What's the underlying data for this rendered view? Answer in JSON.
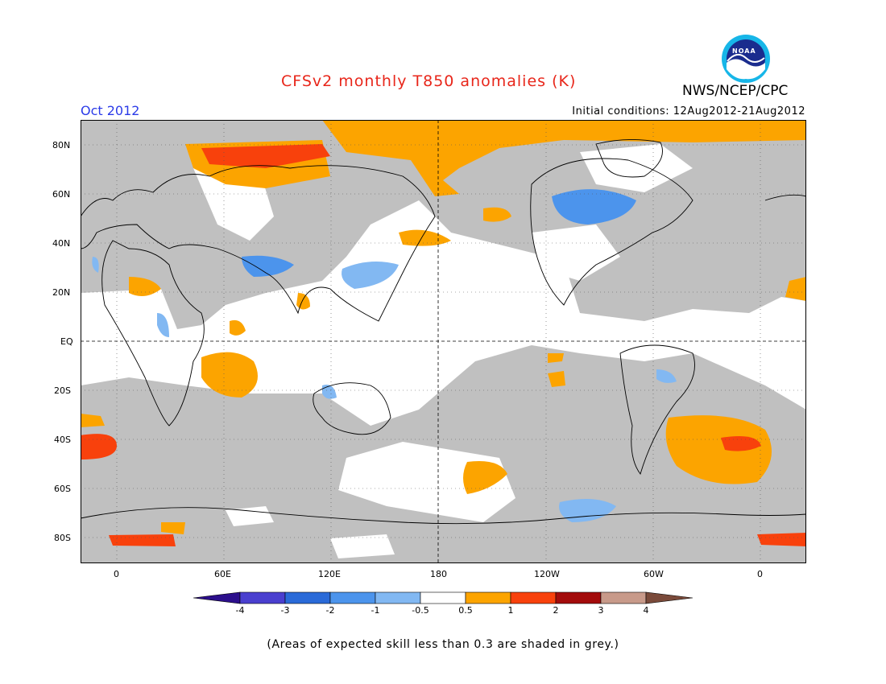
{
  "header": {
    "title": "CFSv2 monthly T850 anomalies (K)",
    "month": "Oct 2012",
    "initial_conditions": "Initial conditions: 12Aug2012-21Aug2012",
    "agency": "NWS/NCEP/CPC",
    "logo_text": "NOAA"
  },
  "map": {
    "lat_labels": [
      "80N",
      "60N",
      "40N",
      "20N",
      "EQ",
      "20S",
      "40S",
      "60S",
      "80S"
    ],
    "lon_labels": [
      "0",
      "60E",
      "120E",
      "180",
      "120W",
      "60W",
      "0"
    ],
    "grey_color": "#c0c0c0"
  },
  "colorbar": {
    "labels": [
      "-4",
      "-3",
      "-2",
      "-1",
      "-0.5",
      "0.5",
      "1",
      "2",
      "3",
      "4"
    ],
    "colors": [
      "#2c0f8c",
      "#4a3fcf",
      "#2a6ad8",
      "#4c94ec",
      "#82b8f2",
      "#ffffff",
      "#fca400",
      "#f8410c",
      "#a30b0b",
      "#c89a8a",
      "#7a4a3a"
    ]
  },
  "footer": {
    "note": "(Areas of expected skill less than 0.3 are shaded in grey.)"
  }
}
